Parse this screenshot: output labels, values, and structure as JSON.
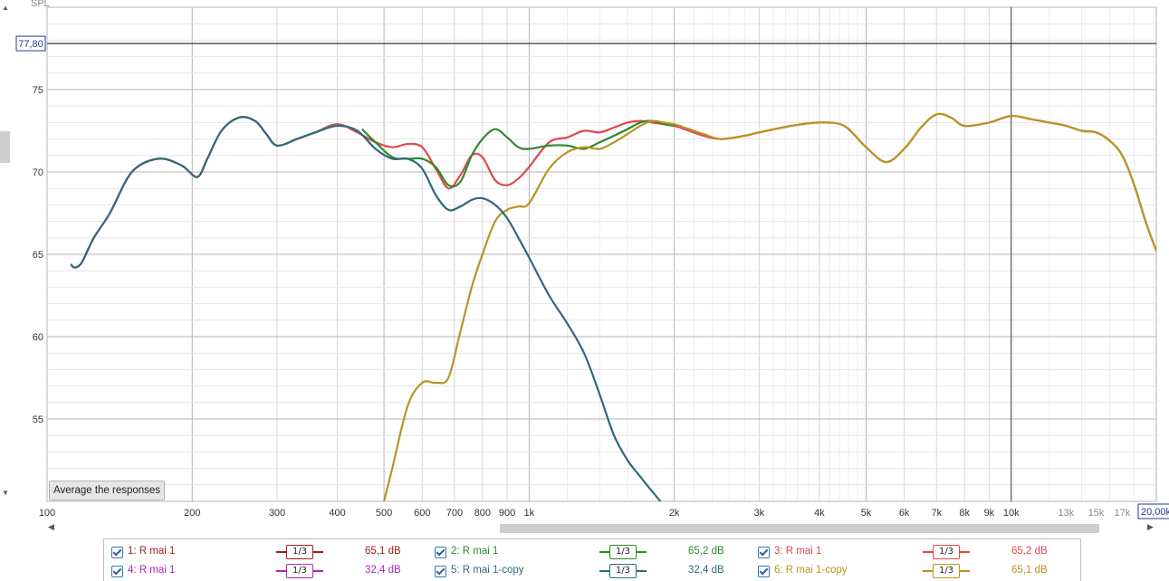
{
  "chart_data": {
    "type": "line",
    "x_scale": "log",
    "xlim": [
      100,
      20000
    ],
    "ylim": [
      50,
      80
    ],
    "ylabel": "SPL",
    "x_tick_labels": [
      {
        "x": 100,
        "label": "100",
        "major": true
      },
      {
        "x": 200,
        "label": "200",
        "major": true
      },
      {
        "x": 300,
        "label": "300",
        "major": true
      },
      {
        "x": 400,
        "label": "400",
        "major": true
      },
      {
        "x": 500,
        "label": "500",
        "major": true
      },
      {
        "x": 600,
        "label": "600",
        "major": true
      },
      {
        "x": 700,
        "label": "700",
        "major": true
      },
      {
        "x": 800,
        "label": "800",
        "major": true
      },
      {
        "x": 900,
        "label": "900",
        "major": true
      },
      {
        "x": 1000,
        "label": "1k",
        "major": true
      },
      {
        "x": 2000,
        "label": "2k",
        "major": true
      },
      {
        "x": 3000,
        "label": "3k",
        "major": true
      },
      {
        "x": 4000,
        "label": "4k",
        "major": true
      },
      {
        "x": 5000,
        "label": "5k",
        "major": true
      },
      {
        "x": 6000,
        "label": "6k",
        "major": true
      },
      {
        "x": 7000,
        "label": "7k",
        "major": true
      },
      {
        "x": 8000,
        "label": "8k",
        "major": true
      },
      {
        "x": 9000,
        "label": "9k",
        "major": true
      },
      {
        "x": 10000,
        "label": "10k",
        "major": true
      },
      {
        "x": 13000,
        "label": "13k",
        "major": false
      },
      {
        "x": 15000,
        "label": "15k",
        "major": false
      },
      {
        "x": 17000,
        "label": "17k",
        "major": false
      }
    ],
    "x_end_label": "20,00k",
    "y_ticks": [
      55,
      60,
      65,
      70,
      75
    ],
    "cursor_level": 77.8,
    "cursor_label": "77,80",
    "cursor_freq": 10000,
    "grid": true,
    "series": [
      {
        "name": "R mai 1",
        "color": "#2f6b78",
        "x": [
          112,
          114,
          118,
          125,
          135,
          150,
          170,
          190,
          205,
          215,
          230,
          250,
          270,
          285,
          300,
          330,
          360,
          400,
          440,
          480,
          520,
          560,
          600,
          640,
          680,
          720,
          760,
          800,
          850,
          900,
          950,
          1000,
          1100,
          1200,
          1300,
          1400,
          1500,
          1600,
          1700,
          1800,
          1900,
          2000
        ],
        "y": [
          64.4,
          64.2,
          64.5,
          66.0,
          67.5,
          70.0,
          70.8,
          70.4,
          69.7,
          70.8,
          72.5,
          73.3,
          73.1,
          72.3,
          71.6,
          72.0,
          72.4,
          72.8,
          72.5,
          71.4,
          70.8,
          70.8,
          70.2,
          68.6,
          67.7,
          67.9,
          68.3,
          68.4,
          68.0,
          67.2,
          66.0,
          64.8,
          62.5,
          60.8,
          59.0,
          56.5,
          54.0,
          52.5,
          51.5,
          50.6,
          49.8,
          49.3
        ]
      },
      {
        "name": "R mai 1",
        "color": "#e0484d",
        "x": [
          112,
          114,
          118,
          125,
          135,
          150,
          170,
          190,
          205,
          215,
          230,
          250,
          270,
          285,
          300,
          330,
          360,
          400,
          440,
          480,
          520,
          560,
          600,
          640,
          680,
          720,
          760,
          800,
          850,
          900,
          950,
          1000,
          1100,
          1200,
          1300,
          1400,
          1500,
          1600,
          1700,
          1800,
          1900,
          2000,
          2100,
          2300,
          2500,
          2800,
          3000,
          3500,
          4000,
          4500,
          5000,
          5500,
          6000,
          6500,
          7000,
          7500,
          8000,
          9000,
          10000,
          11000,
          12000,
          13000,
          14000,
          15000,
          16000,
          17000,
          18000,
          19000,
          20000
        ],
        "y": [
          64.4,
          64.2,
          64.5,
          66.0,
          67.5,
          70.0,
          70.8,
          70.4,
          69.7,
          70.8,
          72.5,
          73.3,
          73.1,
          72.3,
          71.6,
          72.0,
          72.4,
          72.9,
          72.4,
          71.8,
          71.5,
          71.7,
          71.5,
          70.2,
          69.0,
          69.8,
          71.0,
          70.9,
          69.5,
          69.2,
          69.6,
          70.3,
          71.8,
          72.1,
          72.5,
          72.4,
          72.7,
          73.0,
          73.1,
          73.0,
          72.9,
          72.8,
          72.6,
          72.2,
          72.0,
          72.2,
          72.4,
          72.8,
          73.0,
          72.8,
          71.5,
          70.6,
          71.4,
          72.7,
          73.5,
          73.3,
          72.8,
          73.0,
          73.4,
          73.2,
          73.0,
          72.8,
          72.5,
          72.4,
          71.9,
          71.0,
          69.2,
          67.0,
          65.2
        ]
      },
      {
        "name": "R mai 1",
        "color": "#2e8a2e",
        "x": [
          450,
          480,
          520,
          560,
          600,
          640,
          680,
          720,
          760,
          800,
          850,
          900,
          950,
          1000,
          1100,
          1200,
          1300,
          1400,
          1500,
          1600,
          1700,
          1800,
          1900,
          2000
        ],
        "y": [
          72.6,
          71.8,
          70.9,
          70.8,
          70.8,
          70.3,
          69.2,
          69.4,
          71.0,
          72.0,
          72.6,
          72.1,
          71.5,
          71.4,
          71.6,
          71.6,
          71.4,
          71.8,
          72.2,
          72.6,
          73.0,
          73.1,
          72.9,
          72.8
        ]
      },
      {
        "name": "R mai 1-copy",
        "color": "#b89523",
        "x": [
          500,
          520,
          560,
          600,
          640,
          680,
          720,
          760,
          800,
          850,
          900,
          950,
          1000,
          1100,
          1200,
          1300,
          1400,
          1500,
          1600,
          1700,
          1800,
          1900,
          2000,
          2100,
          2300,
          2500,
          2800,
          3000,
          3500,
          4000,
          4500,
          5000,
          5500,
          6000,
          6500,
          7000,
          7500,
          8000,
          9000,
          10000,
          11000,
          12000,
          13000,
          14000,
          15000,
          16000,
          17000,
          18000,
          19000,
          20000
        ],
        "y": [
          50.0,
          52.0,
          55.8,
          57.2,
          57.2,
          57.5,
          60.3,
          63.0,
          65.0,
          67.0,
          67.7,
          67.9,
          68.1,
          70.2,
          71.2,
          71.5,
          71.4,
          71.8,
          72.3,
          72.8,
          73.1,
          73.0,
          72.9,
          72.7,
          72.3,
          72.0,
          72.2,
          72.4,
          72.8,
          73.0,
          72.8,
          71.5,
          70.6,
          71.4,
          72.7,
          73.5,
          73.3,
          72.8,
          73.0,
          73.4,
          73.2,
          73.0,
          72.8,
          72.5,
          72.4,
          71.9,
          71.0,
          69.2,
          67.0,
          65.2
        ]
      }
    ]
  },
  "ui": {
    "average_button": "Average the responses"
  },
  "legend": [
    {
      "label": "1: R mai 1",
      "color": "#9b2020",
      "smoothing": "1/3",
      "level": "65,1 dB"
    },
    {
      "label": "2: R mai 1",
      "color": "#2e8a2e",
      "smoothing": "1/3",
      "level": "65,2 dB"
    },
    {
      "label": "3: R mai 1",
      "color": "#e0484d",
      "smoothing": "1/3",
      "level": "65,2 dB"
    },
    {
      "label": "4: R mai 1",
      "color": "#b026b0",
      "smoothing": "1/3",
      "level": "32,4 dB"
    },
    {
      "label": "5: R mai 1-copy",
      "color": "#2f6b78",
      "smoothing": "1/3",
      "level": "32,4 dB"
    },
    {
      "label": "6: R mai 1-copy",
      "color": "#b89523",
      "smoothing": "1/3",
      "level": "65,1 dB"
    }
  ]
}
